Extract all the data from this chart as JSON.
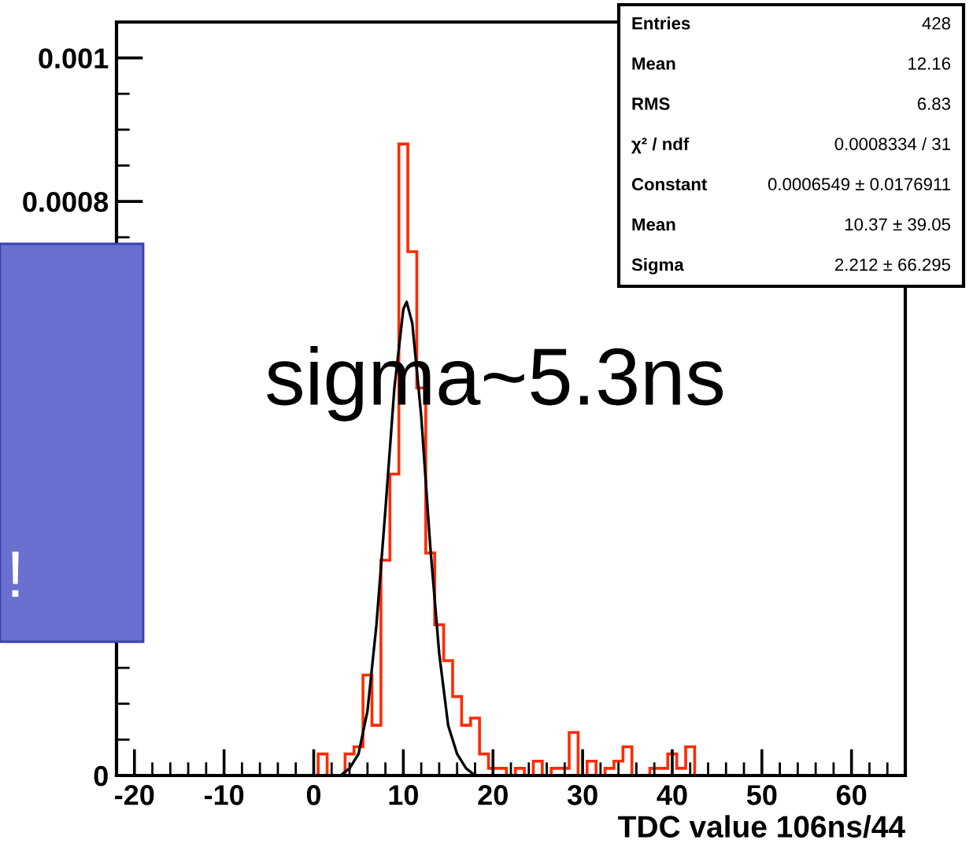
{
  "chart_data": {
    "type": "histogram",
    "xlabel": "TDC value 106ns/44",
    "xlim": [
      -22,
      66
    ],
    "ylim": [
      0,
      0.00105
    ],
    "xticks": [
      {
        "value": -20,
        "label": "-20"
      },
      {
        "value": -18,
        "label": null
      },
      {
        "value": -16,
        "label": null
      },
      {
        "value": -14,
        "label": null
      },
      {
        "value": -12,
        "label": null
      },
      {
        "value": -10,
        "label": "-10"
      },
      {
        "value": -8,
        "label": null
      },
      {
        "value": -6,
        "label": null
      },
      {
        "value": -4,
        "label": null
      },
      {
        "value": -2,
        "label": null
      },
      0,
      {
        "value": 2,
        "label": null
      },
      {
        "value": 4,
        "label": null
      },
      {
        "value": 6,
        "label": null
      },
      {
        "value": 8,
        "label": null
      },
      10,
      {
        "value": 12,
        "label": null
      },
      {
        "value": 14,
        "label": null
      },
      {
        "value": 16,
        "label": null
      },
      {
        "value": 18,
        "label": null
      },
      20,
      {
        "value": 22,
        "label": null
      },
      {
        "value": 24,
        "label": null
      },
      {
        "value": 26,
        "label": null
      },
      {
        "value": 28,
        "label": null
      },
      30,
      {
        "value": 32,
        "label": null
      },
      {
        "value": 34,
        "label": null
      },
      {
        "value": 36,
        "label": null
      },
      {
        "value": 38,
        "label": null
      },
      40,
      {
        "value": 42,
        "label": null
      },
      {
        "value": 44,
        "label": null
      },
      {
        "value": 46,
        "label": null
      },
      {
        "value": 48,
        "label": null
      },
      50,
      {
        "value": 52,
        "label": null
      },
      {
        "value": 54,
        "label": null
      },
      {
        "value": 56,
        "label": null
      },
      {
        "value": 58,
        "label": null
      },
      60,
      {
        "value": 62,
        "label": null
      },
      {
        "value": 64,
        "label": null
      }
    ],
    "yticks": [
      0,
      {
        "value": 5e-05,
        "label": null
      },
      {
        "value": 0.0001,
        "label": null
      },
      {
        "value": 0.00015,
        "label": null
      },
      {
        "value": 0.0002,
        "label": null
      },
      {
        "value": 0.00025,
        "label": null
      },
      {
        "value": 0.0003,
        "label": null
      },
      {
        "value": 0.00035,
        "label": null
      },
      {
        "value": 0.0004,
        "label": null
      },
      {
        "value": 0.00045,
        "label": null
      },
      {
        "value": 0.0005,
        "label": null
      },
      {
        "value": 0.00055,
        "label": null
      },
      {
        "value": 0.0006,
        "label": null
      },
      {
        "value": 0.00065,
        "label": null
      },
      {
        "value": 0.0007,
        "label": null
      },
      {
        "value": 0.00075,
        "label": null
      },
      0.0008,
      {
        "value": 0.00085,
        "label": null
      },
      {
        "value": 0.0009,
        "label": null
      },
      {
        "value": 0.00095,
        "label": null
      },
      0.001
    ],
    "grid": false,
    "series": [
      {
        "color": "#ff2a00",
        "bins": [
          -0.5,
          0.5,
          1.5,
          2.5,
          3.5,
          4.5,
          5.5,
          6.5,
          7.5,
          8.5,
          9.5,
          10.5,
          11.5,
          12.5,
          13.5,
          14.5,
          15.5,
          16.5,
          17.5,
          18.5,
          19.5,
          20.5,
          21.5,
          22.5,
          23.5,
          24.5,
          25.5,
          26.5,
          27.5,
          28.5,
          29.5,
          30.5,
          31.5,
          32.5,
          33.5,
          34.5,
          35.5,
          36.5,
          37.5,
          38.5,
          39.5,
          40.5,
          41.5,
          42.5
        ],
        "values": [
          0,
          3e-05,
          0,
          0,
          3e-05,
          4e-05,
          0.00014,
          7e-05,
          0.0003,
          0.00042,
          0.00088,
          0.00073,
          0.00054,
          0.00031,
          0.00021,
          0.00016,
          0.00011,
          7e-05,
          8e-05,
          3e-05,
          1e-05,
          1e-05,
          0,
          1e-05,
          0,
          2e-05,
          0,
          1e-05,
          1e-05,
          6e-05,
          0,
          2e-05,
          0,
          1e-05,
          2e-05,
          4e-05,
          0,
          0,
          1e-05,
          1e-05,
          3e-05,
          1e-05,
          4e-05
        ]
      },
      {
        "type": "line",
        "color": "#000000",
        "x": [
          2,
          3,
          4,
          5,
          6,
          7,
          8,
          9,
          10,
          10.37,
          11,
          12,
          13,
          14,
          15,
          16,
          17,
          18,
          19
        ],
        "values": [
          0,
          0,
          1e-05,
          3e-05,
          9e-05,
          0.00021,
          0.00037,
          0.00054,
          0.00065,
          0.00066,
          0.00063,
          0.0005,
          0.00032,
          0.00017,
          7e-05,
          3e-05,
          1e-05,
          0,
          0
        ]
      }
    ],
    "annotations": [
      "sigma~5.3ns",
      "!",
      "Entries",
      "428",
      "Mean",
      "12.16",
      "RMS",
      "6.83",
      "χ² / ndf",
      "0.0008334 / 31",
      "Constant",
      "0.0006549 ± 0.0176911",
      "Mean",
      "10.37 ± 39.05",
      "Sigma",
      "2.212 ± 66.295"
    ]
  }
}
